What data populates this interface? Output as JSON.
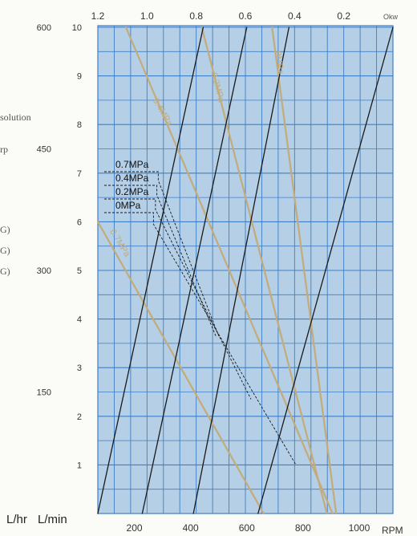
{
  "chart_data": {
    "type": "line",
    "colors": {
      "plot_background": "#b4cfe6",
      "grid": "#3f7fc6",
      "black_series": "#1a1a1a",
      "tan_series": "#c3ab7a",
      "label_text": "#333333"
    },
    "bottom_axis": {
      "ticks": [
        "200",
        "400",
        "600",
        "800",
        "1000"
      ],
      "tick_values": [
        200,
        400,
        600,
        800,
        1000
      ],
      "unit": "RPM",
      "range": [
        70,
        1120
      ]
    },
    "top_axis": {
      "ticks": [
        "1.2",
        "1.0",
        "0.8",
        "0.6",
        "0.4",
        "0.2"
      ],
      "tick_values": [
        1.2,
        1.0,
        0.8,
        0.6,
        0.4,
        0.2
      ],
      "unit": "Okw",
      "range": [
        1.2,
        0.0
      ]
    },
    "left_axis_lmin": {
      "ticks": [
        "1",
        "2",
        "3",
        "4",
        "5",
        "6",
        "7",
        "8",
        "9",
        "10"
      ],
      "tick_values": [
        1,
        2,
        3,
        4,
        5,
        6,
        7,
        8,
        9,
        10
      ],
      "unit": "L/min",
      "range": [
        0,
        10
      ]
    },
    "left_axis_lhr": {
      "ticks": [
        "150",
        "300",
        "450",
        "600"
      ],
      "tick_values": [
        150,
        300,
        450,
        600
      ],
      "unit": "L/hr"
    },
    "cut_labels": [
      "solution",
      "rp",
      "G)",
      "G)",
      "G)"
    ],
    "legend": [
      "0.7MPa",
      "0.4MPa",
      "0.2MPa",
      "0MPa"
    ],
    "flow_series": [
      {
        "name": "0.7MPa",
        "style": "black",
        "x": [
          70,
          445
        ],
        "y": [
          0,
          10
        ]
      },
      {
        "name": "0.4MPa",
        "style": "black",
        "x": [
          228,
          600
        ],
        "y": [
          0,
          10
        ]
      },
      {
        "name": "0.2MPa",
        "style": "black",
        "x": [
          410,
          750
        ],
        "y": [
          0,
          10
        ]
      },
      {
        "name": "0MPa",
        "style": "black",
        "x": [
          640,
          1120
        ],
        "y": [
          0,
          10
        ]
      }
    ],
    "power_series": [
      {
        "name": "0.4MPa",
        "style": "tan",
        "x": [
          170,
          905
        ],
        "y": [
          10,
          0
        ]
      },
      {
        "name": "0.2MPa",
        "style": "tan",
        "x": [
          440,
          885
        ],
        "y": [
          10,
          0
        ]
      },
      {
        "name": "0MPa",
        "style": "tan",
        "x": [
          690,
          918
        ],
        "y": [
          10,
          0
        ]
      },
      {
        "name": "0.7MPa",
        "style": "tan",
        "x": [
          70,
          660
        ],
        "y": [
          6,
          0
        ]
      }
    ],
    "power_labels": [
      {
        "text": "0.4MPa",
        "x": 265,
        "y": 8.5,
        "angle": 60
      },
      {
        "text": "0.2MPa",
        "x": 473,
        "y": 9.05,
        "angle": 75
      },
      {
        "text": "0MPa",
        "x": 700,
        "y": 9.5,
        "angle": 82
      },
      {
        "text": "0.7MPa",
        "x": 112,
        "y": 5.8,
        "angle": 58
      }
    ],
    "leaders": [
      {
        "name": "0.7MPa",
        "knot": [
          285,
          6.85
        ],
        "end": [
          500,
          3.65
        ]
      },
      {
        "name": "0.4MPa",
        "knot": [
          280,
          6.55
        ],
        "end": [
          492,
          3.62
        ]
      },
      {
        "name": "0.2MPa",
        "knot": [
          275,
          6.25
        ],
        "end": [
          615,
          2.35
        ]
      },
      {
        "name": "0MPa",
        "knot": [
          268,
          5.95
        ],
        "end": [
          775,
          1.0
        ]
      }
    ]
  }
}
